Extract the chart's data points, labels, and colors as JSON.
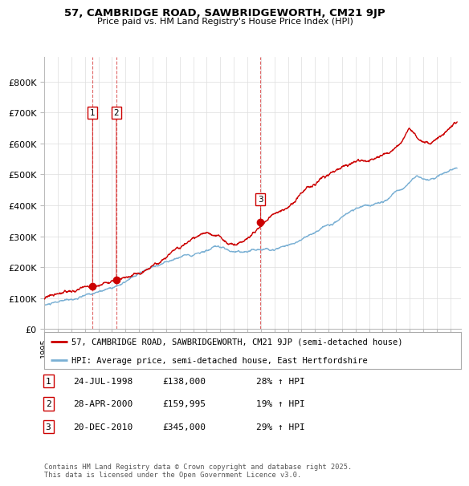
{
  "title_line1": "57, CAMBRIDGE ROAD, SAWBRIDGEWORTH, CM21 9JP",
  "title_line2": "Price paid vs. HM Land Registry's House Price Index (HPI)",
  "xlim_start": 1995.0,
  "xlim_end": 2025.8,
  "ylim_min": 0,
  "ylim_max": 880000,
  "ytick_vals": [
    0,
    100000,
    200000,
    300000,
    400000,
    500000,
    600000,
    700000,
    800000
  ],
  "ytick_labels": [
    "£0",
    "£100K",
    "£200K",
    "£300K",
    "£400K",
    "£500K",
    "£600K",
    "£700K",
    "£800K"
  ],
  "sale_dates": [
    1998.56,
    2000.32,
    2010.97
  ],
  "sale_prices": [
    138000,
    159995,
    345000
  ],
  "sale_labels": [
    "1",
    "2",
    "3"
  ],
  "vline_color": "#cc0000",
  "line_color_property": "#cc0000",
  "line_color_hpi": "#7ab0d4",
  "legend_label_property": "57, CAMBRIDGE ROAD, SAWBRIDGEWORTH, CM21 9JP (semi-detached house)",
  "legend_label_hpi": "HPI: Average price, semi-detached house, East Hertfordshire",
  "table_rows": [
    [
      "1",
      "24-JUL-1998",
      "£138,000",
      "28% ↑ HPI"
    ],
    [
      "2",
      "28-APR-2000",
      "£159,995",
      "19% ↑ HPI"
    ],
    [
      "3",
      "20-DEC-2010",
      "£345,000",
      "29% ↑ HPI"
    ]
  ],
  "footnote": "Contains HM Land Registry data © Crown copyright and database right 2025.\nThis data is licensed under the Open Government Licence v3.0.",
  "background_color": "#ffffff",
  "grid_color": "#dddddd"
}
